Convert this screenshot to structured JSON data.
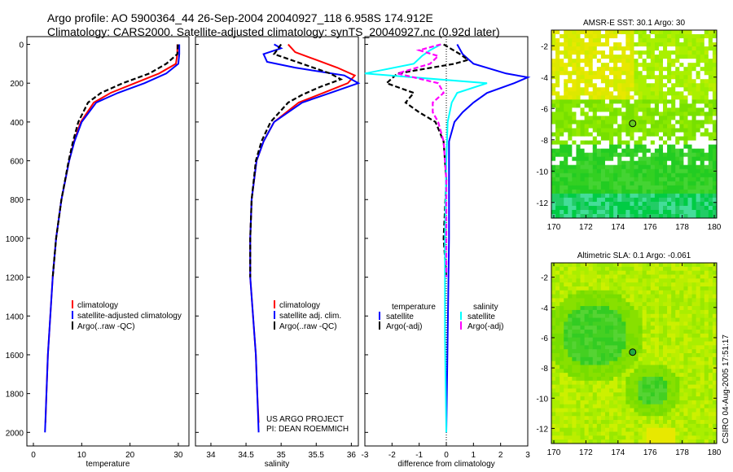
{
  "header": {
    "line1": "Argo profile: AO 5900364_44 26-Sep-2004 20040927_118 6.958S 174.912E",
    "line2": "Climatology: CARS2000. Satellite-adjusted climatology: synTS_20040927.nc (0.92d later)"
  },
  "credit": "CSIRO 04-Aug-2005 17:51:17",
  "project": {
    "line1": "US ARGO PROJECT",
    "line2": "PI: DEAN ROEMMICH"
  },
  "colors": {
    "clim": "#ff0000",
    "sat": "#0000ff",
    "argo": "#000000",
    "sal_sat": "#00ffff",
    "sal_argo": "#ff00ff"
  },
  "chart_data": [
    {
      "type": "line",
      "xlabel": "temperature",
      "ylabel": "depth",
      "xlim": [
        -1.5,
        32
      ],
      "ylim": [
        2050,
        0
      ],
      "xticks": [
        0,
        10,
        20,
        30
      ],
      "yticks": [
        0,
        200,
        400,
        600,
        800,
        1000,
        1200,
        1400,
        1600,
        1800,
        2000
      ],
      "legend": [
        "climatology",
        "satellite-adjusted climatology",
        "Argo(..raw -QC)"
      ],
      "series": [
        {
          "name": "climatology",
          "color": "#ff0000",
          "depth": [
            0,
            50,
            100,
            150,
            200,
            250,
            300,
            400,
            500,
            600,
            800,
            1000,
            1200,
            1400,
            1600,
            1800,
            1950
          ],
          "values": [
            29.8,
            29.8,
            29.5,
            26,
            21,
            16,
            12.5,
            9.8,
            8.4,
            7.4,
            5.8,
            4.7,
            4,
            3.5,
            3,
            2.7,
            2.5
          ]
        },
        {
          "name": "satellite-adjusted climatology",
          "color": "#0000ff",
          "depth": [
            0,
            50,
            100,
            150,
            200,
            250,
            300,
            400,
            500,
            600,
            800,
            1000,
            1200,
            1400,
            1600,
            1800,
            2000
          ],
          "values": [
            30.2,
            30.2,
            30,
            27.5,
            23,
            17.5,
            13,
            10,
            8.5,
            7.4,
            5.8,
            4.7,
            4,
            3.5,
            3,
            2.7,
            2.4
          ]
        },
        {
          "name": "Argo(..raw -QC)",
          "color": "#000000",
          "depth": [
            0,
            50,
            100,
            150,
            200,
            250,
            300,
            400,
            500,
            600,
            800,
            1000,
            1200
          ],
          "values": [
            29.9,
            29.8,
            27.5,
            24,
            18.5,
            14,
            11.3,
            9.3,
            8.2,
            7.3,
            5.8,
            4.7,
            4
          ]
        }
      ]
    },
    {
      "type": "line",
      "xlabel": "salinity",
      "ylabel": "depth",
      "xlim": [
        33.8,
        36.05
      ],
      "ylim": [
        2050,
        0
      ],
      "xticks": [
        34,
        34.5,
        35,
        35.5,
        36
      ],
      "legend": [
        "climatology",
        "satellite adj. clim.",
        "Argo(..raw -QC)"
      ],
      "series": [
        {
          "name": "climatology",
          "color": "#ff0000",
          "depth": [
            0,
            40,
            80,
            120,
            160,
            200,
            250,
            300,
            400,
            500,
            600,
            800,
            1000,
            1200,
            1400,
            1600,
            1800,
            1950
          ],
          "values": [
            35.1,
            35.2,
            35.5,
            35.8,
            36.05,
            35.95,
            35.6,
            35.25,
            34.9,
            34.75,
            34.65,
            34.58,
            34.56,
            34.56,
            34.6,
            34.64,
            34.66,
            34.68
          ]
        },
        {
          "name": "satellite adj. clim.",
          "color": "#0000ff",
          "depth": [
            0,
            20,
            50,
            90,
            120,
            160,
            200,
            250,
            300,
            400,
            500,
            600,
            800,
            1000,
            1200,
            1400,
            1600,
            1800,
            2000
          ],
          "values": [
            34.9,
            35.0,
            34.75,
            34.8,
            35.2,
            35.9,
            36.1,
            35.7,
            35.3,
            34.9,
            34.75,
            34.65,
            34.58,
            34.56,
            34.56,
            34.6,
            34.64,
            34.66,
            34.68
          ]
        },
        {
          "name": "Argo(..raw -QC)",
          "color": "#000000",
          "depth": [
            0,
            50,
            100,
            150,
            180,
            220,
            260,
            300,
            400,
            500,
            600,
            800,
            1000,
            1200
          ],
          "values": [
            35.0,
            34.9,
            35.3,
            35.7,
            35.85,
            35.55,
            35.3,
            35.1,
            34.85,
            34.72,
            34.64,
            34.58,
            34.56,
            34.56
          ]
        }
      ]
    },
    {
      "type": "line",
      "xlabel": "difference from climatology",
      "ylabel": "depth",
      "xlim": [
        -3,
        3
      ],
      "ylim": [
        2050,
        0
      ],
      "xticks": [
        -3,
        -2,
        -1,
        0,
        1,
        2,
        3
      ],
      "legend": {
        "temperature": [
          "temperature",
          "satellite",
          "Argo(-adj)"
        ],
        "salinity": [
          "salinity",
          "satellite",
          "Argo(-adj)"
        ]
      },
      "series": [
        {
          "name": "temperature satellite",
          "color": "#0000ff",
          "depth": [
            0,
            50,
            100,
            150,
            170,
            200,
            250,
            300,
            350,
            400,
            500,
            700,
            1000,
            1500,
            2000
          ],
          "values": [
            0.4,
            0.6,
            1.0,
            2.2,
            3.0,
            2.5,
            1.5,
            1.0,
            0.6,
            0.3,
            0.1,
            0.1,
            0.1,
            0.05,
            0
          ]
        },
        {
          "name": "temperature Argo(-adj)",
          "color": "#000000",
          "depth": [
            0,
            50,
            80,
            100,
            150,
            200,
            250,
            300,
            350,
            400,
            500,
            700,
            1000,
            1200
          ],
          "values": [
            -0.1,
            0.5,
            0.8,
            0.3,
            -1.8,
            -2.2,
            -1.2,
            -1.5,
            -1.0,
            -0.4,
            -0.1,
            0,
            -0.1,
            0
          ]
        },
        {
          "name": "salinity satellite",
          "color": "#00ffff",
          "depth": [
            0,
            30,
            60,
            100,
            150,
            200,
            250,
            300,
            400,
            600,
            1000,
            1500,
            2000
          ],
          "values": [
            -0.2,
            -0.6,
            -0.9,
            -1.2,
            -3,
            1.5,
            0.4,
            0.2,
            0.05,
            0,
            -0.05,
            -0.05,
            0
          ]
        },
        {
          "name": "salinity Argo(-adj)",
          "color": "#ff00ff",
          "depth": [
            0,
            30,
            60,
            100,
            150,
            200,
            250,
            300,
            350,
            400,
            500,
            700,
            1000,
            1200
          ],
          "values": [
            -0.2,
            -1.0,
            -0.3,
            -0.6,
            -1.8,
            -0.3,
            -0.1,
            -0.5,
            -0.5,
            -0.3,
            -0.1,
            0,
            0,
            0
          ]
        }
      ]
    },
    {
      "type": "heatmap",
      "title": "AMSR-E SST: 30.1 Argo: 30",
      "xlim": [
        170,
        180
      ],
      "ylim": [
        -13,
        -1
      ],
      "xticks": [
        170,
        172,
        174,
        176,
        178,
        180
      ],
      "yticks": [
        -2,
        -4,
        -6,
        -8,
        -10,
        -12
      ],
      "marker": {
        "lon": 174.912,
        "lat": -6.958
      }
    },
    {
      "type": "heatmap",
      "title": "Altimetric SLA: 0.1 Argo: -0.061",
      "xlim": [
        170,
        180
      ],
      "ylim": [
        -13,
        -1
      ],
      "xticks": [
        170,
        172,
        174,
        176,
        178,
        180
      ],
      "yticks": [
        -2,
        -4,
        -6,
        -8,
        -10,
        -12
      ],
      "marker": {
        "lon": 174.912,
        "lat": -6.958
      }
    }
  ]
}
